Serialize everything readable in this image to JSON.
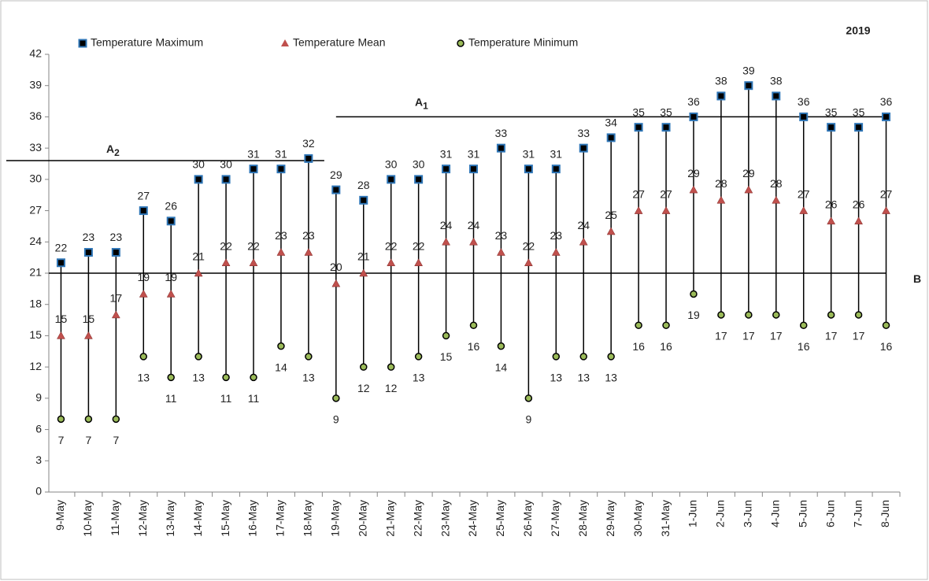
{
  "chart_data": {
    "type": "range-dot",
    "title": "2019",
    "categories": [
      "9-May",
      "10-May",
      "11-May",
      "12-May",
      "13-May",
      "14-May",
      "15-May",
      "16-May",
      "17-May",
      "18-May",
      "19-May",
      "20-May",
      "21-May",
      "22-May",
      "23-May",
      "24-May",
      "25-May",
      "26-May",
      "27-May",
      "28-May",
      "29-May",
      "30-May",
      "31-May",
      "1-Jun",
      "2-Jun",
      "3-Jun",
      "4-Jun",
      "5-Jun",
      "6-Jun",
      "7-Jun",
      "8-Jun"
    ],
    "series": [
      {
        "name": "Temperature Maximum",
        "color": "#2e75b6",
        "marker": "square",
        "values": [
          22,
          23,
          23,
          27,
          26,
          30,
          30,
          31,
          31,
          32,
          29,
          28,
          30,
          30,
          31,
          31,
          33,
          31,
          31,
          33,
          34,
          35,
          35,
          36,
          38,
          39,
          38,
          36,
          35,
          35,
          36
        ]
      },
      {
        "name": "Temperature Mean",
        "color": "#c0504d",
        "marker": "triangle",
        "values": [
          15,
          15,
          17,
          19,
          19,
          21,
          22,
          22,
          23,
          23,
          20,
          21,
          22,
          22,
          24,
          24,
          23,
          22,
          23,
          24,
          25,
          27,
          27,
          29,
          28,
          29,
          28,
          27,
          26,
          26,
          27
        ]
      },
      {
        "name": "Temperature Minimum",
        "color": "#9bbb59",
        "marker": "circle",
        "values": [
          7,
          7,
          7,
          13,
          11,
          13,
          11,
          11,
          14,
          13,
          9,
          12,
          12,
          13,
          15,
          16,
          14,
          9,
          13,
          13,
          13,
          16,
          16,
          19,
          17,
          17,
          17,
          16,
          17,
          17,
          16
        ]
      }
    ],
    "reference_lines": [
      {
        "label": "A",
        "subscript": "1",
        "y": 36,
        "start": "19-May",
        "end": "8-Jun"
      },
      {
        "label": "A",
        "subscript": "2",
        "y": 31.8,
        "start": "9-May",
        "end": "18-May"
      },
      {
        "label": "B",
        "y": 21,
        "start": "9-May",
        "end": "8-Jun"
      }
    ],
    "ylim": [
      0,
      42
    ],
    "yticks": [
      0,
      3,
      6,
      9,
      12,
      15,
      18,
      21,
      24,
      27,
      30,
      33,
      36,
      39,
      42
    ],
    "grid": false
  }
}
